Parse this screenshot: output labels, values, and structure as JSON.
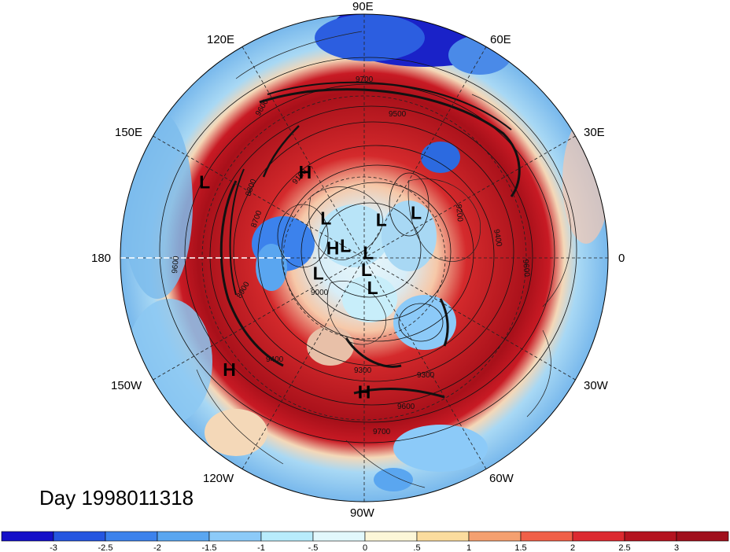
{
  "title": "Day 1998011318",
  "longitude_labels": {
    "lon_90E": "90E",
    "lon_60E": "60E",
    "lon_30E": "30E",
    "lon_0": "0",
    "lon_30W": "30W",
    "lon_60W": "60W",
    "lon_90W": "90W",
    "lon_120W": "120W",
    "lon_150W": "150W",
    "lon_180": "180",
    "lon_150E": "150E",
    "lon_120E": "120E"
  },
  "pressure_centers": [
    {
      "type": "H",
      "lon": 125,
      "lat": 52
    },
    {
      "type": "L",
      "lon": 155,
      "lat": 25
    },
    {
      "type": "L",
      "lon": 40,
      "lat": 65
    },
    {
      "type": "L",
      "lon": 135,
      "lat": 70
    },
    {
      "type": "L",
      "lon": 65,
      "lat": 75
    },
    {
      "type": "H",
      "lon": 165,
      "lat": 78
    },
    {
      "type": "L",
      "lon": 150,
      "lat": 82
    },
    {
      "type": "L",
      "lon": 40,
      "lat": 88
    },
    {
      "type": "L",
      "lon": -160,
      "lat": 72
    },
    {
      "type": "L",
      "lon": -80,
      "lat": 85
    },
    {
      "type": "L",
      "lon": -75,
      "lat": 78
    },
    {
      "type": "H",
      "lon": -140,
      "lat": 25
    },
    {
      "type": "H",
      "lon": -90,
      "lat": 40
    }
  ],
  "contour_labels": [
    "9700",
    "9600",
    "9500",
    "9400",
    "9300",
    "9200",
    "9100",
    "9000",
    "8900",
    "8800",
    "8700"
  ],
  "colorbar": {
    "ticks": [
      "-3",
      "-2.5",
      "-2",
      "-1.5",
      "-1",
      "-.5",
      "0",
      ".5",
      "1",
      "1.5",
      "2",
      "2.5",
      "3"
    ],
    "colors": [
      "#1510c8",
      "#2556e0",
      "#3c82ec",
      "#5aa6f0",
      "#8ccaf8",
      "#b8ecfc",
      "#e2f8fc",
      "#fcf6d8",
      "#fbdc9e",
      "#f4a070",
      "#f06048",
      "#dc2a30",
      "#b41420",
      "#a0101c"
    ]
  }
}
